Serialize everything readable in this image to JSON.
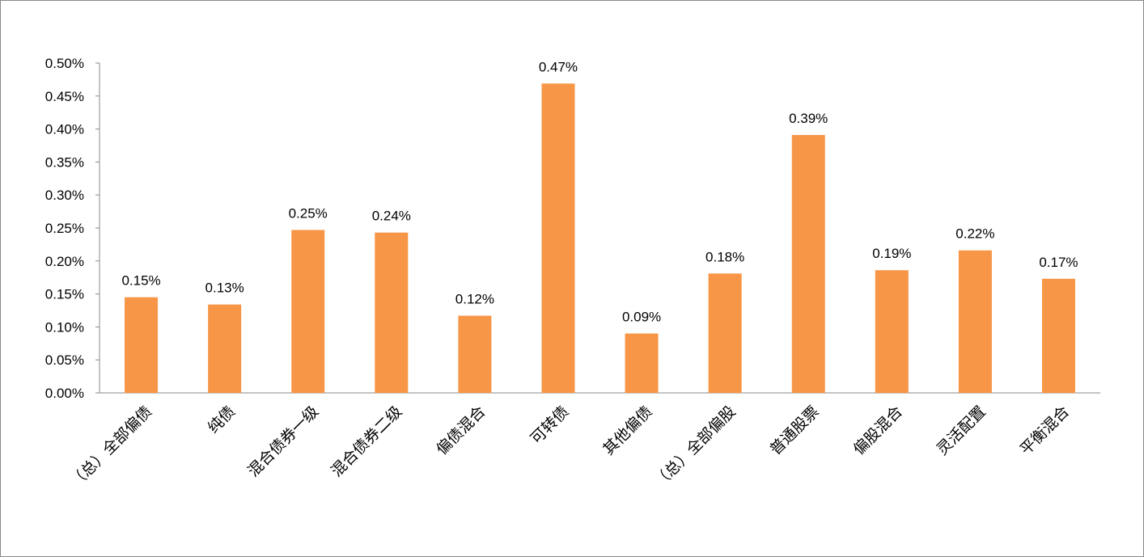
{
  "chart_data": {
    "type": "bar",
    "title": "",
    "xlabel": "",
    "ylabel": "",
    "ylim": [
      0,
      0.5
    ],
    "ytick_step": 0.05,
    "yticks": [
      "0.00%",
      "0.05%",
      "0.10%",
      "0.15%",
      "0.20%",
      "0.25%",
      "0.30%",
      "0.35%",
      "0.40%",
      "0.45%",
      "0.50%"
    ],
    "grid": false,
    "legend": "none",
    "bar_color": "#F79646",
    "categories": [
      "（总）全部偏债",
      "纯债",
      "混合债券一级",
      "混合债券二级",
      "偏债混合",
      "可转债",
      "其他偏债",
      "（总）全部偏股",
      "普通股票",
      "偏股混合",
      "灵活配置",
      "平衡混合"
    ],
    "values": [
      0.145,
      0.134,
      0.247,
      0.243,
      0.117,
      0.469,
      0.09,
      0.181,
      0.391,
      0.186,
      0.216,
      0.173
    ],
    "data_labels": [
      "0.15%",
      "0.13%",
      "0.25%",
      "0.24%",
      "0.12%",
      "0.47%",
      "0.09%",
      "0.18%",
      "0.39%",
      "0.19%",
      "0.22%",
      "0.17%"
    ]
  }
}
